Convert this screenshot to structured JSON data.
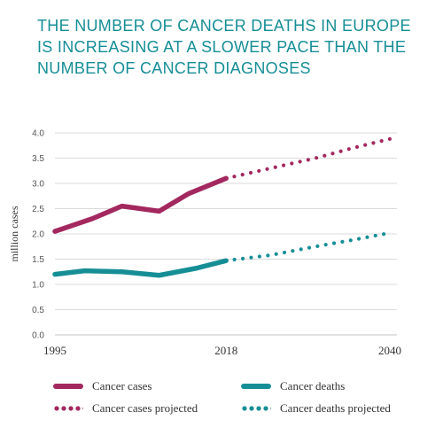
{
  "title_lines": [
    "THE NUMBER OF CANCER DEATHS IN EUROPE",
    "IS INCREASING AT A SLOWER PACE THAN THE",
    "NUMBER OF CANCER DIAGNOSES"
  ],
  "colors": {
    "cases": "#a3285f",
    "deaths": "#168e96",
    "title": "#168e96",
    "grid": "#cfcfcf"
  },
  "chart_data": {
    "type": "line",
    "ylabel": "million cases",
    "ylim": [
      0,
      4
    ],
    "yticks": [
      "0.0",
      "0.5",
      "1.0",
      "1.5",
      "2.0",
      "2.5",
      "3.0",
      "3.5",
      "4.0"
    ],
    "xlim": [
      1995,
      2040
    ],
    "xticks": [
      "1995",
      "2018",
      "2040"
    ],
    "grid": true,
    "legend_position": "bottom",
    "series": [
      {
        "name": "Cancer cases",
        "color": "#a3285f",
        "style": "solid",
        "x": [
          1995,
          2000,
          2004,
          2009,
          2013,
          2018
        ],
        "values": [
          2.05,
          2.3,
          2.55,
          2.45,
          2.8,
          3.1
        ]
      },
      {
        "name": "Cancer cases projected",
        "color": "#a3285f",
        "style": "dotted",
        "x": [
          2018,
          2024,
          2030,
          2035,
          2040
        ],
        "values": [
          3.1,
          3.3,
          3.5,
          3.7,
          3.88
        ]
      },
      {
        "name": "Cancer deaths",
        "color": "#168e96",
        "style": "solid",
        "x": [
          1995,
          1999,
          2004,
          2009,
          2014,
          2018
        ],
        "values": [
          1.2,
          1.27,
          1.25,
          1.18,
          1.32,
          1.47
        ]
      },
      {
        "name": "Cancer deaths projected",
        "color": "#168e96",
        "style": "dotted",
        "x": [
          2018,
          2024,
          2030,
          2035,
          2040
        ],
        "values": [
          1.47,
          1.58,
          1.75,
          1.88,
          2.02
        ]
      }
    ]
  }
}
